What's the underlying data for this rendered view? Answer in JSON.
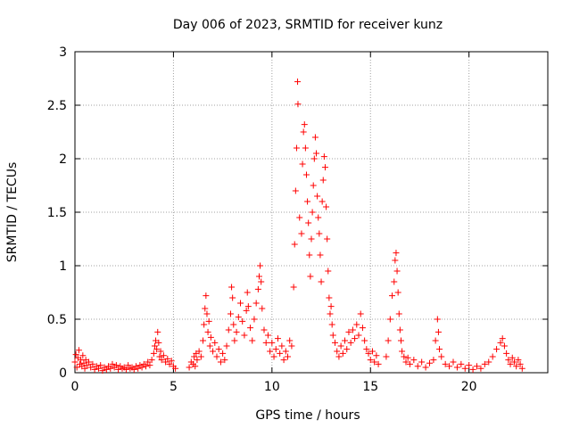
{
  "chart_data": {
    "type": "scatter",
    "title": "Day 006 of 2023, SRMTID for receiver kunz",
    "xlabel": "GPS time / hours",
    "ylabel": "SRMTID / TECUs",
    "xlim": [
      0,
      24
    ],
    "ylim": [
      0,
      3
    ],
    "xticks": [
      0,
      5,
      10,
      15,
      20
    ],
    "xtick_labels": [
      "0",
      "5",
      "10",
      "15",
      "20"
    ],
    "yticks": [
      0,
      0.5,
      1,
      1.5,
      2,
      2.5,
      3
    ],
    "ytick_labels": [
      "0",
      "0.5",
      "1",
      "1.5",
      "2",
      "2.5",
      "3"
    ],
    "grid": true,
    "marker": "+",
    "series": [
      {
        "name": "SRMTID",
        "color": "#ff0000",
        "points": [
          [
            0.0,
            0.1
          ],
          [
            0.05,
            0.17
          ],
          [
            0.1,
            0.05
          ],
          [
            0.15,
            0.14
          ],
          [
            0.2,
            0.21
          ],
          [
            0.25,
            0.08
          ],
          [
            0.3,
            0.12
          ],
          [
            0.35,
            0.06
          ],
          [
            0.4,
            0.16
          ],
          [
            0.45,
            0.09
          ],
          [
            0.5,
            0.04
          ],
          [
            0.55,
            0.12
          ],
          [
            0.6,
            0.07
          ],
          [
            0.7,
            0.1
          ],
          [
            0.8,
            0.05
          ],
          [
            0.9,
            0.08
          ],
          [
            1.0,
            0.03
          ],
          [
            1.1,
            0.06
          ],
          [
            1.2,
            0.04
          ],
          [
            1.3,
            0.07
          ],
          [
            1.4,
            0.02
          ],
          [
            1.5,
            0.05
          ],
          [
            1.6,
            0.03
          ],
          [
            1.7,
            0.06
          ],
          [
            1.8,
            0.04
          ],
          [
            1.9,
            0.08
          ],
          [
            2.0,
            0.05
          ],
          [
            2.1,
            0.07
          ],
          [
            2.2,
            0.03
          ],
          [
            2.3,
            0.06
          ],
          [
            2.4,
            0.04
          ],
          [
            2.5,
            0.05
          ],
          [
            2.6,
            0.03
          ],
          [
            2.7,
            0.07
          ],
          [
            2.8,
            0.04
          ],
          [
            2.9,
            0.05
          ],
          [
            3.0,
            0.03
          ],
          [
            3.1,
            0.06
          ],
          [
            3.2,
            0.04
          ],
          [
            3.3,
            0.07
          ],
          [
            3.4,
            0.05
          ],
          [
            3.5,
            0.08
          ],
          [
            3.6,
            0.06
          ],
          [
            3.7,
            0.1
          ],
          [
            3.8,
            0.07
          ],
          [
            3.9,
            0.12
          ],
          [
            4.0,
            0.18
          ],
          [
            4.05,
            0.25
          ],
          [
            4.1,
            0.3
          ],
          [
            4.15,
            0.22
          ],
          [
            4.2,
            0.38
          ],
          [
            4.25,
            0.28
          ],
          [
            4.3,
            0.15
          ],
          [
            4.35,
            0.2
          ],
          [
            4.4,
            0.12
          ],
          [
            4.5,
            0.16
          ],
          [
            4.6,
            0.1
          ],
          [
            4.7,
            0.13
          ],
          [
            4.8,
            0.08
          ],
          [
            4.9,
            0.11
          ],
          [
            5.0,
            0.06
          ],
          [
            5.1,
            0.04
          ],
          [
            5.8,
            0.05
          ],
          [
            5.9,
            0.1
          ],
          [
            6.0,
            0.08
          ],
          [
            6.05,
            0.15
          ],
          [
            6.1,
            0.06
          ],
          [
            6.15,
            0.18
          ],
          [
            6.2,
            0.12
          ],
          [
            6.3,
            0.2
          ],
          [
            6.4,
            0.15
          ],
          [
            6.5,
            0.3
          ],
          [
            6.55,
            0.45
          ],
          [
            6.6,
            0.6
          ],
          [
            6.65,
            0.72
          ],
          [
            6.7,
            0.55
          ],
          [
            6.75,
            0.38
          ],
          [
            6.8,
            0.48
          ],
          [
            6.85,
            0.25
          ],
          [
            6.9,
            0.33
          ],
          [
            7.0,
            0.2
          ],
          [
            7.1,
            0.28
          ],
          [
            7.2,
            0.15
          ],
          [
            7.3,
            0.22
          ],
          [
            7.4,
            0.1
          ],
          [
            7.5,
            0.18
          ],
          [
            7.6,
            0.12
          ],
          [
            7.7,
            0.25
          ],
          [
            7.8,
            0.4
          ],
          [
            7.9,
            0.55
          ],
          [
            7.95,
            0.8
          ],
          [
            8.0,
            0.7
          ],
          [
            8.05,
            0.45
          ],
          [
            8.1,
            0.3
          ],
          [
            8.2,
            0.38
          ],
          [
            8.3,
            0.52
          ],
          [
            8.4,
            0.65
          ],
          [
            8.5,
            0.48
          ],
          [
            8.6,
            0.35
          ],
          [
            8.7,
            0.58
          ],
          [
            8.75,
            0.75
          ],
          [
            8.8,
            0.62
          ],
          [
            8.9,
            0.42
          ],
          [
            9.0,
            0.3
          ],
          [
            9.1,
            0.5
          ],
          [
            9.2,
            0.65
          ],
          [
            9.3,
            0.78
          ],
          [
            9.35,
            0.9
          ],
          [
            9.4,
            1.0
          ],
          [
            9.45,
            0.85
          ],
          [
            9.5,
            0.6
          ],
          [
            9.6,
            0.4
          ],
          [
            9.7,
            0.28
          ],
          [
            9.8,
            0.35
          ],
          [
            9.9,
            0.2
          ],
          [
            10.0,
            0.28
          ],
          [
            10.1,
            0.15
          ],
          [
            10.2,
            0.22
          ],
          [
            10.3,
            0.32
          ],
          [
            10.4,
            0.18
          ],
          [
            10.5,
            0.25
          ],
          [
            10.6,
            0.12
          ],
          [
            10.7,
            0.2
          ],
          [
            10.8,
            0.15
          ],
          [
            10.9,
            0.3
          ],
          [
            11.0,
            0.25
          ],
          [
            11.1,
            0.8
          ],
          [
            11.15,
            1.2
          ],
          [
            11.2,
            1.7
          ],
          [
            11.25,
            2.1
          ],
          [
            11.3,
            2.72
          ],
          [
            11.32,
            2.51
          ],
          [
            11.4,
            1.45
          ],
          [
            11.5,
            1.3
          ],
          [
            11.55,
            1.95
          ],
          [
            11.6,
            2.25
          ],
          [
            11.65,
            2.32
          ],
          [
            11.7,
            2.1
          ],
          [
            11.75,
            1.85
          ],
          [
            11.8,
            1.6
          ],
          [
            11.85,
            1.4
          ],
          [
            11.9,
            1.1
          ],
          [
            11.95,
            0.9
          ],
          [
            12.0,
            1.25
          ],
          [
            12.05,
            1.5
          ],
          [
            12.1,
            1.75
          ],
          [
            12.15,
            2.0
          ],
          [
            12.2,
            2.2
          ],
          [
            12.25,
            2.05
          ],
          [
            12.3,
            1.65
          ],
          [
            12.35,
            1.45
          ],
          [
            12.4,
            1.3
          ],
          [
            12.45,
            1.1
          ],
          [
            12.5,
            0.85
          ],
          [
            12.55,
            1.6
          ],
          [
            12.6,
            1.8
          ],
          [
            12.65,
            2.02
          ],
          [
            12.7,
            1.92
          ],
          [
            12.75,
            1.55
          ],
          [
            12.8,
            1.25
          ],
          [
            12.85,
            0.95
          ],
          [
            12.9,
            0.7
          ],
          [
            12.95,
            0.55
          ],
          [
            13.0,
            0.62
          ],
          [
            13.05,
            0.45
          ],
          [
            13.1,
            0.35
          ],
          [
            13.2,
            0.28
          ],
          [
            13.3,
            0.2
          ],
          [
            13.4,
            0.15
          ],
          [
            13.5,
            0.25
          ],
          [
            13.6,
            0.18
          ],
          [
            13.7,
            0.3
          ],
          [
            13.8,
            0.22
          ],
          [
            13.9,
            0.38
          ],
          [
            14.0,
            0.28
          ],
          [
            14.1,
            0.4
          ],
          [
            14.2,
            0.32
          ],
          [
            14.3,
            0.45
          ],
          [
            14.4,
            0.35
          ],
          [
            14.5,
            0.55
          ],
          [
            14.6,
            0.42
          ],
          [
            14.7,
            0.3
          ],
          [
            14.8,
            0.22
          ],
          [
            14.9,
            0.18
          ],
          [
            15.0,
            0.12
          ],
          [
            15.1,
            0.2
          ],
          [
            15.2,
            0.1
          ],
          [
            15.3,
            0.16
          ],
          [
            15.4,
            0.08
          ],
          [
            15.8,
            0.15
          ],
          [
            15.9,
            0.3
          ],
          [
            16.0,
            0.5
          ],
          [
            16.1,
            0.72
          ],
          [
            16.2,
            0.85
          ],
          [
            16.25,
            1.05
          ],
          [
            16.3,
            1.12
          ],
          [
            16.35,
            0.95
          ],
          [
            16.4,
            0.75
          ],
          [
            16.45,
            0.55
          ],
          [
            16.5,
            0.4
          ],
          [
            16.55,
            0.3
          ],
          [
            16.6,
            0.2
          ],
          [
            16.7,
            0.15
          ],
          [
            16.8,
            0.1
          ],
          [
            16.9,
            0.14
          ],
          [
            17.0,
            0.08
          ],
          [
            17.2,
            0.12
          ],
          [
            17.4,
            0.06
          ],
          [
            17.6,
            0.1
          ],
          [
            17.8,
            0.05
          ],
          [
            18.0,
            0.09
          ],
          [
            18.2,
            0.12
          ],
          [
            18.3,
            0.3
          ],
          [
            18.4,
            0.5
          ],
          [
            18.45,
            0.38
          ],
          [
            18.5,
            0.22
          ],
          [
            18.6,
            0.15
          ],
          [
            18.8,
            0.08
          ],
          [
            19.0,
            0.06
          ],
          [
            19.2,
            0.1
          ],
          [
            19.4,
            0.05
          ],
          [
            19.6,
            0.08
          ],
          [
            19.8,
            0.04
          ],
          [
            20.0,
            0.07
          ],
          [
            20.2,
            0.03
          ],
          [
            20.4,
            0.06
          ],
          [
            20.6,
            0.04
          ],
          [
            20.8,
            0.08
          ],
          [
            21.0,
            0.1
          ],
          [
            21.2,
            0.15
          ],
          [
            21.4,
            0.22
          ],
          [
            21.6,
            0.28
          ],
          [
            21.7,
            0.32
          ],
          [
            21.8,
            0.25
          ],
          [
            21.9,
            0.18
          ],
          [
            22.0,
            0.12
          ],
          [
            22.1,
            0.08
          ],
          [
            22.2,
            0.14
          ],
          [
            22.3,
            0.1
          ],
          [
            22.4,
            0.06
          ],
          [
            22.5,
            0.12
          ],
          [
            22.6,
            0.08
          ],
          [
            22.7,
            0.04
          ]
        ]
      }
    ]
  }
}
